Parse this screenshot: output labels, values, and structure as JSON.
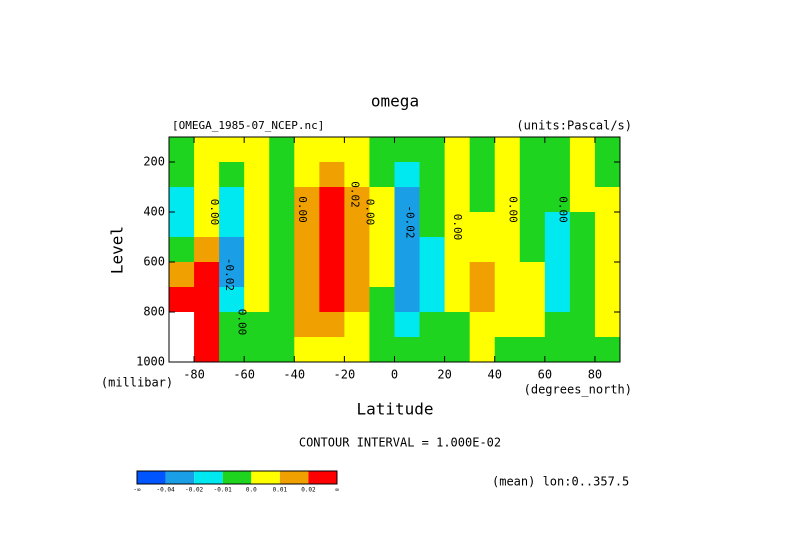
{
  "chart_data": {
    "type": "contour",
    "title": "omega",
    "file_label": "[OMEGA_1985-07_NCEP.nc]",
    "units_label": "(units:Pascal/s)",
    "ylabel": "Level",
    "yunits": "(millibar)",
    "xlabel": "Latitude",
    "xunits": "(degrees_north)",
    "contour_interval": "CONTOUR INTERVAL = 1.000E-02",
    "region_note": "(mean) lon:0..357.5",
    "xlim": [
      -90,
      90
    ],
    "ylim": [
      1000,
      100
    ],
    "xticks": [
      -80,
      -60,
      -40,
      -20,
      0,
      20,
      40,
      60,
      80
    ],
    "yticks": [
      200,
      400,
      600,
      800,
      1000
    ],
    "x": [
      -85,
      -75,
      -65,
      -55,
      -45,
      -35,
      -25,
      -15,
      -5,
      5,
      15,
      25,
      35,
      45,
      55,
      65,
      75,
      85
    ],
    "y": [
      150,
      250,
      350,
      450,
      550,
      650,
      750,
      850,
      950
    ],
    "z": [
      [
        -0.005,
        0.005,
        0.005,
        0.005,
        -0.005,
        0.005,
        0.005,
        0.005,
        -0.005,
        -0.005,
        -0.005,
        0.005,
        -0.005,
        0.005,
        -0.005,
        -0.005,
        0.005,
        -0.005
      ],
      [
        -0.005,
        0.005,
        -0.005,
        0.005,
        -0.005,
        0.005,
        0.015,
        0.005,
        -0.005,
        -0.015,
        -0.005,
        0.005,
        -0.005,
        0.005,
        -0.005,
        -0.005,
        0.005,
        -0.005
      ],
      [
        -0.015,
        0.005,
        -0.015,
        0.005,
        -0.005,
        0.015,
        0.025,
        0.015,
        0.005,
        -0.03,
        -0.005,
        0.005,
        -0.005,
        0.005,
        -0.005,
        -0.005,
        0.005,
        0.005
      ],
      [
        -0.015,
        0.005,
        -0.015,
        0.005,
        -0.005,
        0.015,
        0.025,
        0.015,
        0.005,
        -0.03,
        -0.005,
        0.005,
        0.005,
        0.005,
        -0.005,
        -0.015,
        -0.005,
        0.005
      ],
      [
        -0.005,
        0.015,
        -0.03,
        0.005,
        -0.005,
        0.015,
        0.025,
        0.015,
        0.005,
        -0.03,
        -0.015,
        0.005,
        0.005,
        0.005,
        -0.005,
        -0.015,
        -0.005,
        0.005
      ],
      [
        0.015,
        0.025,
        -0.03,
        0.005,
        -0.005,
        0.015,
        0.025,
        0.015,
        0.005,
        -0.03,
        -0.015,
        0.005,
        0.015,
        0.005,
        0.005,
        -0.015,
        -0.005,
        0.005
      ],
      [
        0.025,
        0.025,
        -0.015,
        0.005,
        -0.005,
        0.015,
        0.025,
        0.015,
        -0.005,
        -0.03,
        -0.015,
        0.005,
        0.015,
        0.005,
        0.005,
        -0.015,
        -0.005,
        0.005
      ],
      [
        null,
        0.025,
        -0.005,
        -0.005,
        -0.005,
        0.015,
        0.015,
        0.005,
        -0.005,
        -0.015,
        -0.005,
        -0.005,
        0.005,
        0.005,
        0.005,
        -0.005,
        -0.005,
        0.005
      ],
      [
        null,
        0.025,
        -0.005,
        -0.005,
        -0.005,
        0.005,
        0.005,
        0.005,
        -0.005,
        -0.005,
        -0.005,
        -0.005,
        0.005,
        -0.005,
        -0.005,
        -0.005,
        -0.005,
        -0.005
      ]
    ],
    "levels": [
      -0.04,
      -0.02,
      -0.01,
      {
        "value": 0,
        "label": "0.0"
      },
      0.01,
      0.02
    ],
    "level_end_labels": [
      "-∞",
      "∞"
    ],
    "colors": [
      "#0055ff",
      "#1a9ee6",
      "#00e8f0",
      "#1ed41e",
      "#ffff00",
      "#f0a000",
      "#ff0000"
    ],
    "contour_labels": [
      {
        "x": -72,
        "y": 400,
        "label": "0.00"
      },
      {
        "x": -66,
        "y": 650,
        "label": "-0.02"
      },
      {
        "x": -61,
        "y": 840,
        "label": "0.00"
      },
      {
        "x": -37,
        "y": 390,
        "label": "0.00"
      },
      {
        "x": -16,
        "y": 330,
        "label": "0.02"
      },
      {
        "x": -10,
        "y": 400,
        "label": "0.00"
      },
      {
        "x": 6,
        "y": 440,
        "label": "-0.02"
      },
      {
        "x": 25,
        "y": 460,
        "label": "0.00"
      },
      {
        "x": 47,
        "y": 390,
        "label": "0.00"
      },
      {
        "x": 67,
        "y": 390,
        "label": "0.00"
      }
    ]
  }
}
